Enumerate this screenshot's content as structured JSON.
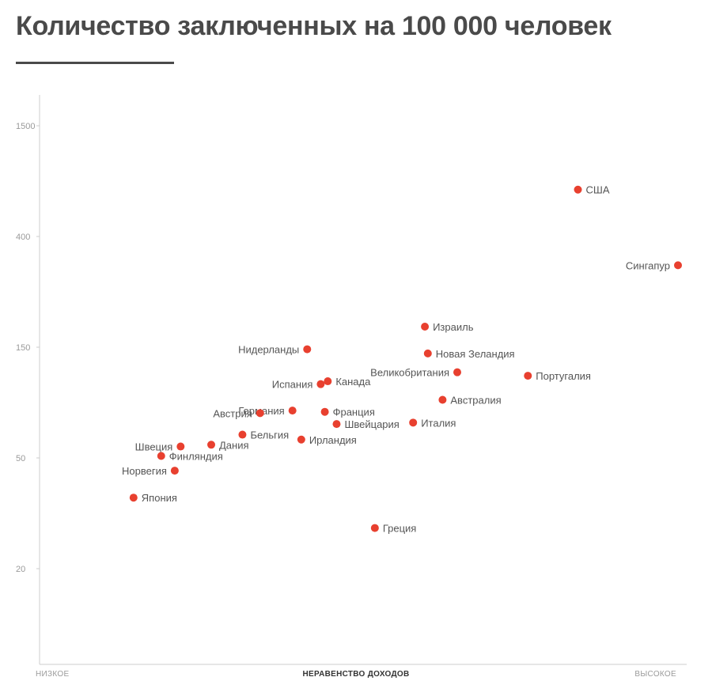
{
  "title": "Количество заключенных на 100 000 человек",
  "colors": {
    "point": "#e8402f",
    "axis": "#cccccc",
    "title": "#4a4a4a"
  },
  "chart_data": {
    "type": "scatter",
    "title": "Количество заключенных на 100 000 человек",
    "xlabel": "НЕРАВЕНСТВО ДОХОДОВ",
    "x_low_label": "НИЗКОЕ",
    "x_high_label": "ВЫСОКОЕ",
    "ylabel": "",
    "y_scale": "log",
    "y_ticks": [
      1500,
      400,
      150,
      50,
      20
    ],
    "grid": false,
    "points": [
      {
        "name": "США",
        "x": 0.83,
        "y": 700,
        "label_side": "right"
      },
      {
        "name": "Сингапур",
        "x": 1.0,
        "y": 310,
        "label_side": "left"
      },
      {
        "name": "Израиль",
        "x": 0.57,
        "y": 180,
        "label_side": "right"
      },
      {
        "name": "Нидерланды",
        "x": 0.37,
        "y": 147,
        "label_side": "left"
      },
      {
        "name": "Новая Зеландия",
        "x": 0.575,
        "y": 141,
        "label_side": "right"
      },
      {
        "name": "Великобритания",
        "x": 0.625,
        "y": 117,
        "label_side": "left"
      },
      {
        "name": "Португалия",
        "x": 0.745,
        "y": 113,
        "label_side": "right"
      },
      {
        "name": "Канада",
        "x": 0.405,
        "y": 107,
        "label_side": "right"
      },
      {
        "name": "Испания",
        "x": 0.393,
        "y": 104,
        "label_side": "left"
      },
      {
        "name": "Австралия",
        "x": 0.6,
        "y": 89,
        "label_side": "right"
      },
      {
        "name": "Германия",
        "x": 0.345,
        "y": 80,
        "label_side": "left"
      },
      {
        "name": "Франция",
        "x": 0.4,
        "y": 79,
        "label_side": "right"
      },
      {
        "name": "Австрия",
        "x": 0.29,
        "y": 78,
        "label_side": "left"
      },
      {
        "name": "Италия",
        "x": 0.55,
        "y": 71,
        "label_side": "right"
      },
      {
        "name": "Швейцария",
        "x": 0.42,
        "y": 70,
        "label_side": "right"
      },
      {
        "name": "Бельгия",
        "x": 0.26,
        "y": 63,
        "label_side": "right"
      },
      {
        "name": "Ирландия",
        "x": 0.36,
        "y": 60,
        "label_side": "right"
      },
      {
        "name": "Швеция",
        "x": 0.155,
        "y": 56,
        "label_side": "left"
      },
      {
        "name": "Дания",
        "x": 0.207,
        "y": 57,
        "label_side": "right"
      },
      {
        "name": "Финляндия",
        "x": 0.122,
        "y": 51,
        "label_side": "right"
      },
      {
        "name": "Норвегия",
        "x": 0.145,
        "y": 45,
        "label_side": "left"
      },
      {
        "name": "Япония",
        "x": 0.075,
        "y": 36,
        "label_side": "right"
      },
      {
        "name": "Греция",
        "x": 0.485,
        "y": 28,
        "label_side": "right"
      }
    ]
  }
}
